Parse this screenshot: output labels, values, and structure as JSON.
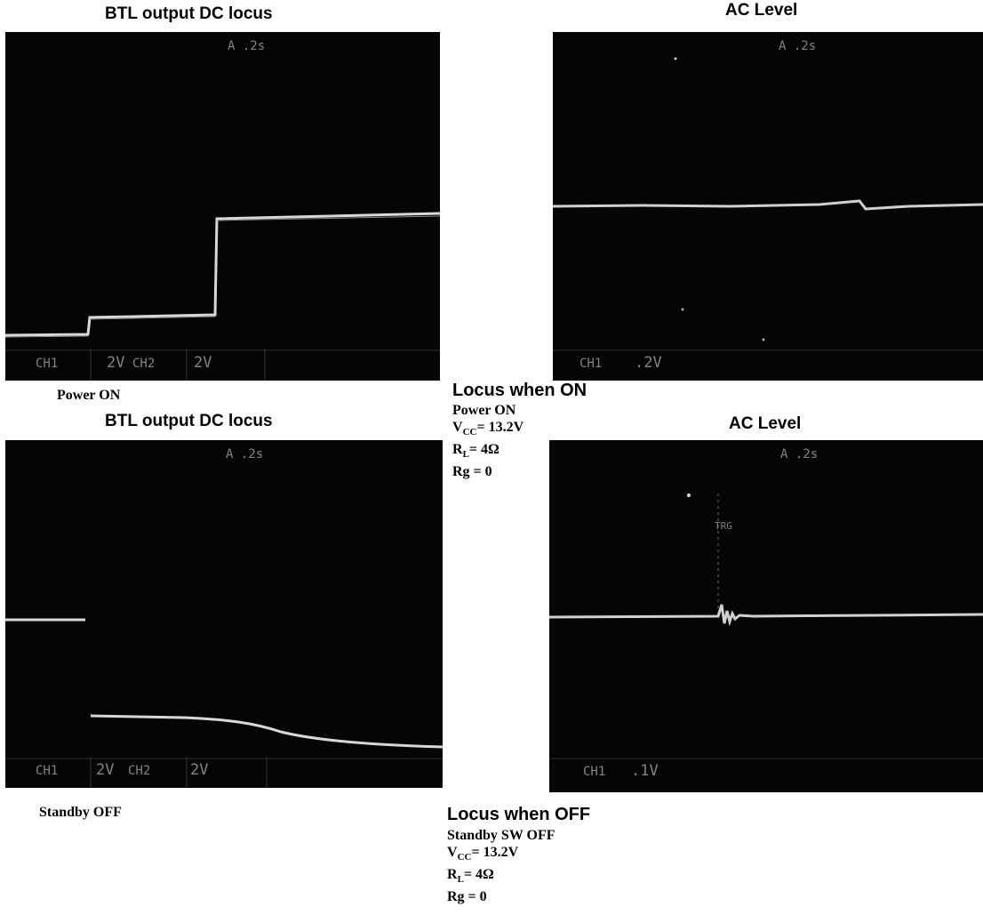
{
  "top": {
    "left_title": "BTL output DC locus",
    "right_title": "AC Level",
    "left_scope": {
      "timebase": "A  .2s",
      "ch1": "CH1",
      "ch1_scale": "2V",
      "ch2": "CH2",
      "ch2_scale": "2V"
    },
    "right_scope": {
      "timebase": "A  .2s",
      "ch1": "CH1",
      "ch1_scale": ".2V"
    },
    "caption": "Power ON",
    "heading": "Locus when ON",
    "conditions": {
      "mode": "Power ON",
      "vcc": "V",
      "vcc_sub": "CC",
      "vcc_val": "= 13.2V",
      "rl": "R",
      "rl_sub": "L",
      "rl_val": "= 4Ω",
      "rg": "Rg = 0"
    }
  },
  "bottom": {
    "left_title": "BTL output DC locus",
    "right_title": "AC Level",
    "left_scope": {
      "timebase": "A  .2s",
      "ch1": "CH1",
      "ch1_scale": "2V",
      "ch2": "CH2",
      "ch2_scale": "2V"
    },
    "right_scope": {
      "timebase": "A  .2s",
      "trig": "TRG",
      "ch1": "CH1",
      "ch1_scale": ".1V"
    },
    "caption": "Standby OFF",
    "heading": "Locus when OFF",
    "conditions": {
      "mode": "Standby SW OFF",
      "vcc": "V",
      "vcc_sub": "CC",
      "vcc_val": "= 13.2V",
      "rl": "R",
      "rl_sub": "L",
      "rl_val": "= 4Ω",
      "rg": "Rg = 0"
    }
  },
  "colors": {
    "screen": "#050505",
    "trace": "#d8d8d8",
    "osd": "#9a9a9a"
  }
}
